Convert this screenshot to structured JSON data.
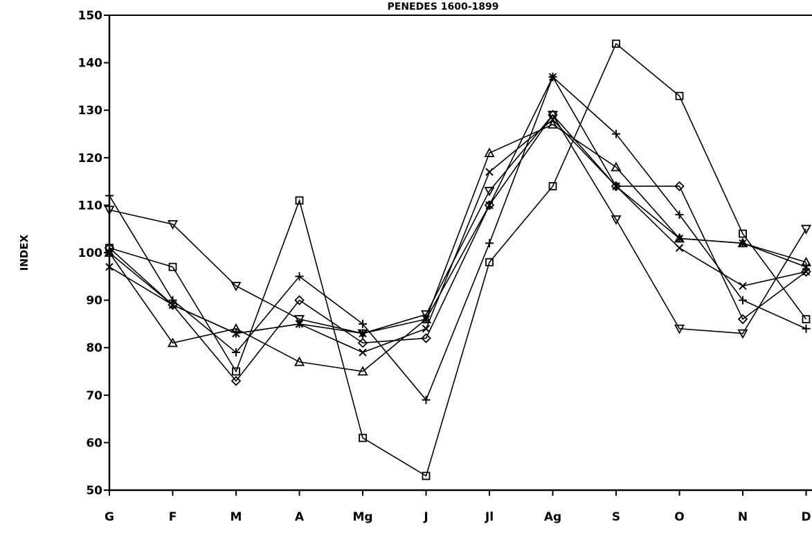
{
  "chart_data": {
    "type": "line",
    "title": "PENEDES 1600-1899",
    "ylabel": "INDEX",
    "xlabel": "",
    "ylim": [
      50,
      150
    ],
    "yticks": [
      50,
      60,
      70,
      80,
      90,
      100,
      110,
      120,
      130,
      140,
      150
    ],
    "categories": [
      "G",
      "F",
      "M",
      "A",
      "Mg",
      "J",
      "Jl",
      "Ag",
      "S",
      "O",
      "N",
      "D"
    ],
    "grid": false,
    "legend": "none",
    "series": [
      {
        "marker": "square",
        "values": [
          101,
          97,
          75,
          111,
          61,
          53,
          98,
          114,
          144,
          133,
          104,
          86
        ]
      },
      {
        "marker": "triangle-down",
        "values": [
          109,
          106,
          93,
          86,
          83,
          87,
          113,
          129,
          107,
          84,
          83,
          105
        ]
      },
      {
        "marker": "plus",
        "values": [
          112,
          90,
          79,
          95,
          85,
          69,
          102,
          137,
          125,
          108,
          90,
          84
        ]
      },
      {
        "marker": "triangle-up",
        "values": [
          100,
          81,
          84,
          77,
          75,
          86,
          121,
          127,
          118,
          103,
          102,
          98
        ]
      },
      {
        "marker": "diamond",
        "values": [
          101,
          89,
          73,
          90,
          81,
          82,
          110,
          129,
          114,
          114,
          86,
          96
        ]
      },
      {
        "marker": "x",
        "values": [
          97,
          89,
          83,
          85,
          79,
          84,
          117,
          128,
          114,
          101,
          93,
          96
        ]
      },
      {
        "marker": "asterisk",
        "values": [
          100,
          89,
          83,
          85,
          83,
          86,
          110,
          137,
          114,
          103,
          102,
          97
        ]
      }
    ]
  }
}
